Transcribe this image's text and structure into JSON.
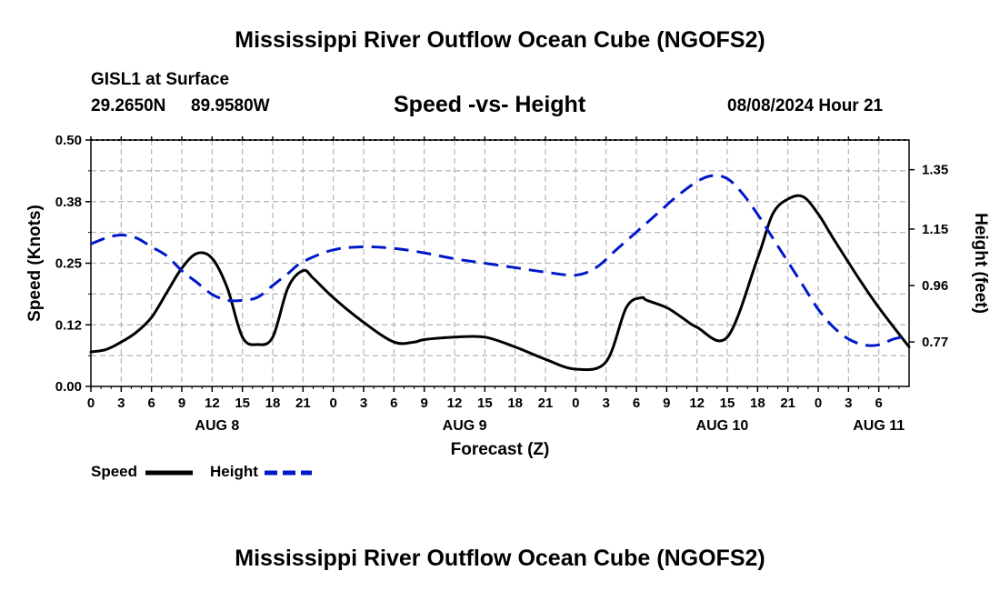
{
  "page_title": "Mississippi River Outflow Ocean Cube (NGOFS2)",
  "footer_title": "Mississippi River Outflow Ocean Cube (NGOFS2)",
  "station": {
    "name": "GISL1 at Surface",
    "lat": "29.2650N",
    "lon": "89.9580W"
  },
  "datetime": "08/08/2024 Hour 21",
  "colors": {
    "speed": "#000000",
    "height": "#0018c8",
    "grid": "#b4b4b4"
  },
  "chart_data": {
    "type": "line",
    "title": "Speed -vs- Height",
    "xlabel": "Forecast (Z)",
    "ylabel": "Speed (Knots)",
    "y2label": "Height (feet)",
    "ylim": [
      0,
      0.5
    ],
    "y2lim": [
      0.62,
      1.45
    ],
    "xlim": [
      0,
      81
    ],
    "x_tick_labels": [
      "0",
      "3",
      "6",
      "9",
      "12",
      "15",
      "18",
      "21",
      "0",
      "3",
      "6",
      "9",
      "12",
      "15",
      "18",
      "21",
      "0",
      "3",
      "6",
      "9",
      "12",
      "15",
      "18",
      "21",
      "0",
      "3",
      "6"
    ],
    "y_ticks": [
      "0.00",
      "0.12",
      "0.25",
      "0.38",
      "0.50"
    ],
    "y2_ticks": [
      "0.77",
      "0.96",
      "1.15",
      "1.35"
    ],
    "y2_tick_values": [
      0.77,
      0.96,
      1.15,
      1.35
    ],
    "date_labels": [
      {
        "label": "AUG 8",
        "x": 12.5
      },
      {
        "label": "AUG 9",
        "x": 37
      },
      {
        "label": "AUG 10",
        "x": 62.5
      },
      {
        "label": "AUG 11",
        "x": 78
      }
    ],
    "legend": [
      {
        "name": "Speed",
        "color": "#000000",
        "dash": "solid"
      },
      {
        "name": "Height",
        "color": "#0018c8",
        "dash": "dashed"
      }
    ],
    "series": [
      {
        "name": "Speed",
        "axis": "left",
        "x": [
          0,
          1.5,
          3,
          4.5,
          6,
          7.5,
          9,
          10.5,
          12,
          13.5,
          15,
          16.5,
          18,
          19.5,
          21,
          22,
          24,
          27,
          30,
          32,
          33,
          36,
          39,
          42,
          45,
          48,
          51,
          53,
          54.5,
          55,
          57,
          58.5,
          60,
          63,
          66,
          67.5,
          69,
          70.5,
          72,
          73.5,
          76,
          78,
          81
        ],
        "values": [
          0.07,
          0.075,
          0.09,
          0.11,
          0.14,
          0.19,
          0.24,
          0.27,
          0.26,
          0.2,
          0.1,
          0.085,
          0.1,
          0.2,
          0.235,
          0.22,
          0.18,
          0.13,
          0.09,
          0.09,
          0.095,
          0.1,
          0.1,
          0.08,
          0.055,
          0.035,
          0.05,
          0.16,
          0.18,
          0.175,
          0.16,
          0.14,
          0.12,
          0.1,
          0.26,
          0.35,
          0.38,
          0.385,
          0.35,
          0.3,
          0.22,
          0.16,
          0.08
        ]
      },
      {
        "name": "Height",
        "axis": "right",
        "x": [
          0,
          1.5,
          3,
          4.5,
          6,
          7.5,
          9,
          10.5,
          12,
          13.5,
          15,
          16.5,
          18,
          19.5,
          21,
          24,
          27,
          30,
          33,
          36,
          39,
          42,
          45,
          48,
          50,
          52,
          54,
          56,
          58,
          60,
          61.5,
          63,
          64.5,
          66,
          67.5,
          69,
          70.5,
          72,
          73.5,
          75,
          76.5,
          78,
          79.5,
          81
        ],
        "values": [
          1.1,
          1.12,
          1.13,
          1.12,
          1.09,
          1.06,
          1.01,
          0.97,
          0.93,
          0.91,
          0.91,
          0.92,
          0.96,
          1.0,
          1.04,
          1.08,
          1.09,
          1.085,
          1.07,
          1.05,
          1.035,
          1.02,
          1.005,
          0.995,
          1.02,
          1.08,
          1.14,
          1.2,
          1.26,
          1.31,
          1.33,
          1.32,
          1.27,
          1.2,
          1.12,
          1.04,
          0.96,
          0.88,
          0.82,
          0.78,
          0.76,
          0.76,
          0.78,
          0.79
        ]
      }
    ]
  }
}
